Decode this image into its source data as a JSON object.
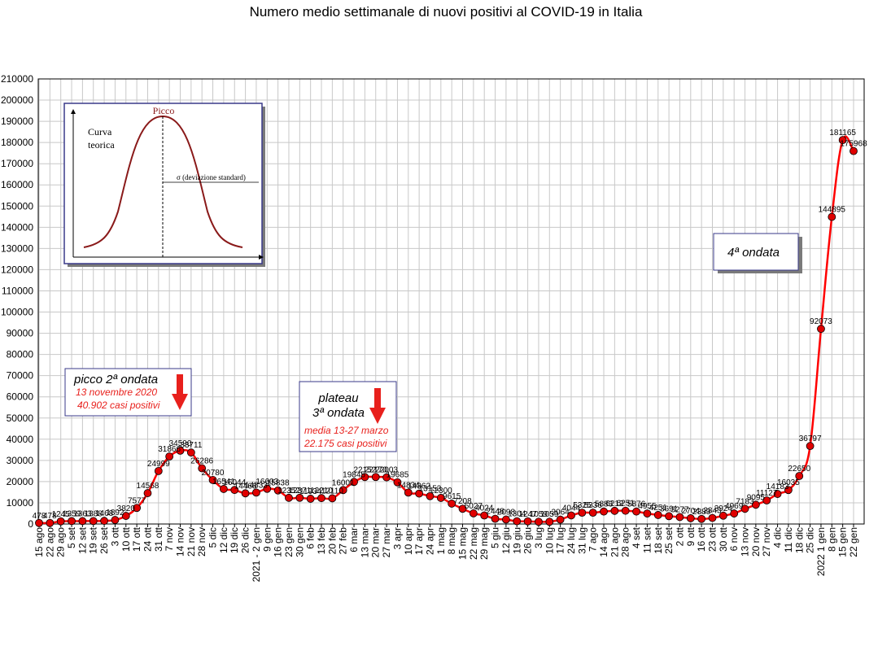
{
  "chart_data": {
    "type": "line",
    "title": "Numero medio settimanale di nuovi positivi al COVID-19 in Italia",
    "ylim": [
      0,
      210000
    ],
    "ytick_step": 10000,
    "grid": true,
    "series_color": "#ff0000",
    "marker_color": "#e00000",
    "categories": [
      "15 ago",
      "22 ago",
      "29 ago",
      "5 set",
      "12 set",
      "19 set",
      "26 set",
      "3 ott",
      "10 ott",
      "17 ott",
      "24 ott",
      "31 ott",
      "7 nov",
      "14 nov",
      "21 nov",
      "28 nov",
      "5 dic",
      "12 dic",
      "19 dic",
      "26 dic",
      "2021 - 2 gen",
      "9 gen",
      "16 gen",
      "23 gen",
      "30 gen",
      "6 feb",
      "13 feb",
      "20 feb",
      "27 feb",
      "6 mar",
      "13 mar",
      "20 mar",
      "27 mar",
      "3 apr",
      "10 apr",
      "17 apr",
      "24 apr",
      "1 mag",
      "8 mag",
      "15 mag",
      "22 mag",
      "29 mag",
      "5 giu",
      "12 giu",
      "19 giu",
      "26 giu",
      "3 lug",
      "10 lug",
      "17 lug",
      "24 lug",
      "31 lug",
      "7 ago",
      "14 ago",
      "21 ago",
      "28 ago",
      "4 set",
      "11 set",
      "18 set",
      "25 set",
      "2 ott",
      "9 ott",
      "16 ott",
      "23 ott",
      "30 ott",
      "6 nov",
      "13 nov",
      "20 nov",
      "27 nov",
      "4 dic",
      "11 dic",
      "18 dic",
      "25 dic",
      "2022 1 gen",
      "8 gen",
      "15 gen",
      "22 gen"
    ],
    "values": [
      478,
      478,
      1245,
      1359,
      1363,
      1388,
      1468,
      1892,
      3820,
      7577,
      14568,
      24999,
      31866,
      34590,
      33711,
      26286,
      20780,
      16541,
      16044,
      14466,
      14833,
      16603,
      15838,
      12352,
      12371,
      11934,
      12210,
      12110,
      16001,
      19845,
      22152,
      22170,
      22003,
      19685,
      14834,
      14362,
      13153,
      12300,
      9615,
      7208,
      5027,
      4024,
      2448,
      2098,
      1304,
      1247,
      1059,
      1059,
      2064,
      4044,
      5325,
      5336,
      5883,
      6212,
      6251,
      5876,
      4955,
      4251,
      3691,
      3277,
      2704,
      2389,
      2843,
      3924,
      4969,
      7183,
      9095,
      11127,
      14183,
      16035,
      22650,
      36797,
      92073,
      144895,
      181165,
      175968
    ],
    "labels": [
      "478",
      "478",
      "1245",
      "1359",
      "1363",
      "1388",
      "1468",
      "1892",
      "3820",
      "7577",
      "14568",
      "24999",
      "31866",
      "34590",
      "33711",
      "26286",
      "20780",
      "16541",
      "16044",
      "14466",
      "14833",
      "16603",
      "15838",
      "12352",
      "12371",
      "11934",
      "12210",
      "12110",
      "16001",
      "19845",
      "22152",
      "22170",
      "22003",
      "19685",
      "14834",
      "14362",
      "13153",
      "12300",
      "9615",
      "7208",
      "5027",
      "4024",
      "2448",
      "2098",
      "1304",
      "1247",
      "1059",
      "1059",
      "2064",
      "4044",
      "5325",
      "5336",
      "5883",
      "6212",
      "6251",
      "5876",
      "4955",
      "4251",
      "3691",
      "3277",
      "2704",
      "2389",
      "2843",
      "3924",
      "4969",
      "7183",
      "9095",
      "11127",
      "14183",
      "16035",
      "22650",
      "36797",
      "92073",
      "144895",
      "181165",
      "175968"
    ]
  },
  "annotations": {
    "peak2": {
      "title": "picco 2ª ondata",
      "line1": "13 novembre 2020",
      "line2": "40.902 casi positivi"
    },
    "wave3": {
      "title1": "plateau",
      "title2": "3ª ondata",
      "line1": "media 13-27 marzo",
      "line2": "22.175 casi positivi"
    },
    "wave4": {
      "title": "4ª ondata"
    }
  },
  "inset": {
    "peak_label": "Picco",
    "curve_label_1": "Curva",
    "curve_label_2": "teorica",
    "sigma_label": "σ (deviazione standard)"
  }
}
